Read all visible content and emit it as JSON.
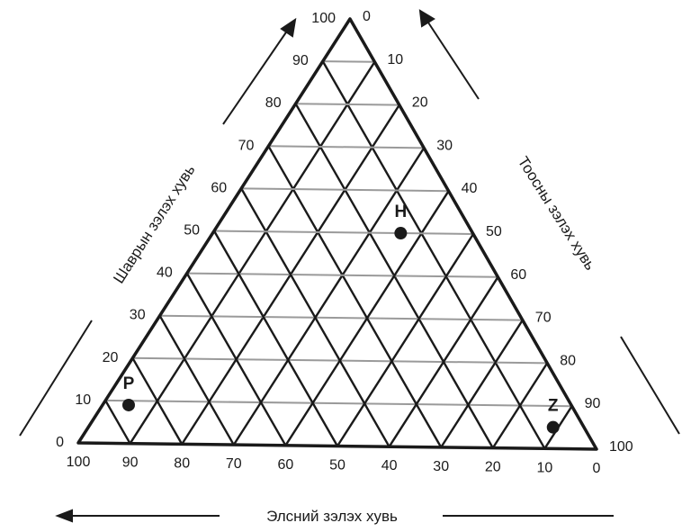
{
  "diagram": {
    "type": "ternary",
    "axes": {
      "left": {
        "title": "Шаврын зэлэх хувь",
        "ticks": [
          "0",
          "10",
          "20",
          "30",
          "40",
          "50",
          "60",
          "70",
          "80",
          "90",
          "100"
        ]
      },
      "right": {
        "title": "Тоосны зэлэх хувь",
        "ticks": [
          "0",
          "10",
          "20",
          "30",
          "40",
          "50",
          "60",
          "70",
          "80",
          "90",
          "100"
        ]
      },
      "bottom": {
        "title": "Элсний зэлэх хувь",
        "ticks": [
          "100",
          "90",
          "80",
          "70",
          "60",
          "50",
          "40",
          "30",
          "20",
          "10",
          "0"
        ]
      }
    },
    "points": [
      {
        "label": "H",
        "shavar": 50,
        "toos": 36,
        "els": 14
      },
      {
        "label": "P",
        "shavar": 9,
        "toos": 5,
        "els": 86
      },
      {
        "label": "Z",
        "shavar": 5,
        "toos": 89,
        "els": 6
      }
    ],
    "colors": {
      "ink": "#1a1a1a",
      "background": "#ffffff"
    }
  }
}
